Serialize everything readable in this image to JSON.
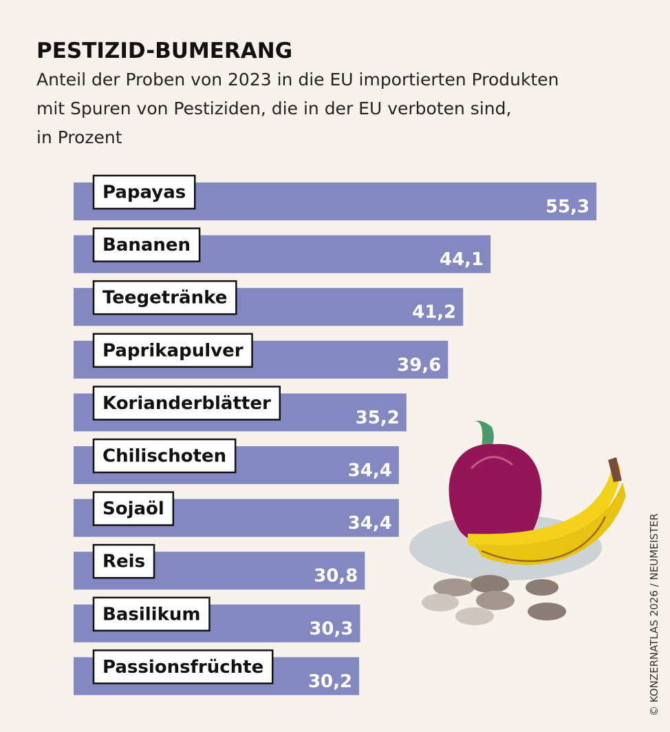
{
  "chart_data": {
    "type": "bar",
    "orientation": "horizontal",
    "title": "PESTIZID-BUMERANG",
    "subtitle": [
      "Anteil der Proben von 2023 in die EU importierten Produkten",
      "mit Spuren von Pestiziden, die in der EU verboten sind,",
      "in Prozent"
    ],
    "categories": [
      "Papayas",
      "Bananen",
      "Teegetränke",
      "Paprikapulver",
      "Korianderblätter",
      "Chilischoten",
      "Sojaöl",
      "Reis",
      "Basilikum",
      "Passionsfrüchte"
    ],
    "values": [
      55.3,
      44.1,
      41.2,
      39.6,
      35.2,
      34.4,
      34.4,
      30.8,
      30.3,
      30.2
    ],
    "value_labels": [
      "55,3",
      "44,1",
      "41,2",
      "39,6",
      "35,2",
      "34,4",
      "34,4",
      "30,8",
      "30,3",
      "30,2"
    ],
    "color": "#8389c0",
    "source": "© KONZERNATLAS 2026 / NEUMEISTER"
  }
}
